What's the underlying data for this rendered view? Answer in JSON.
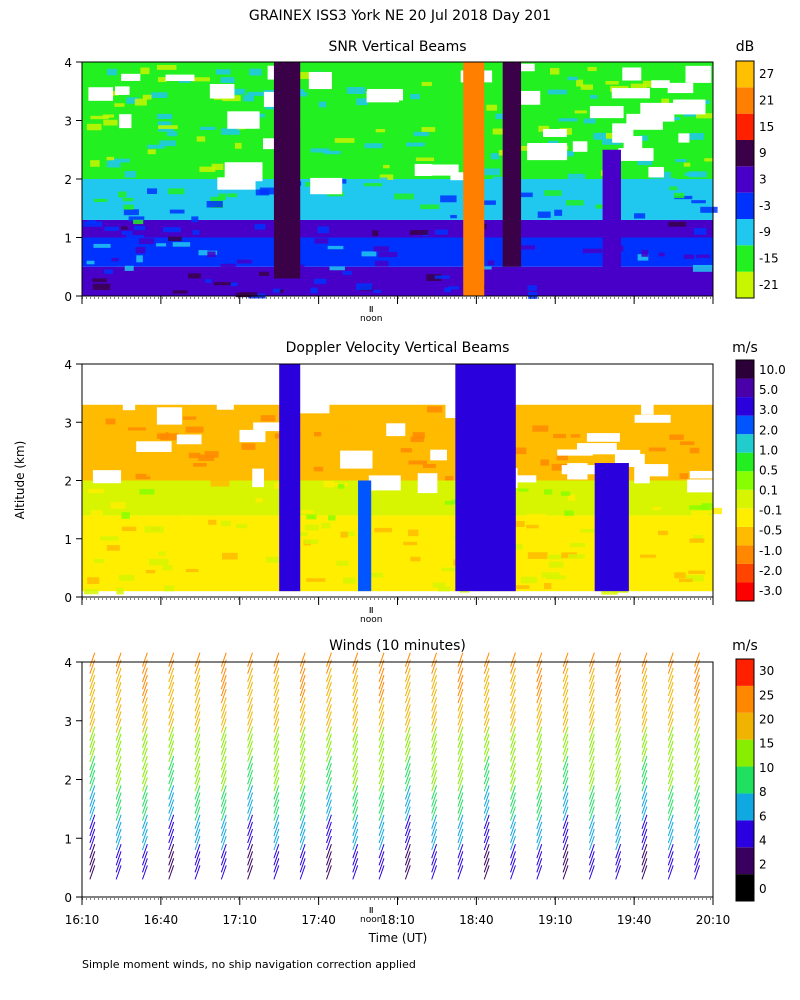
{
  "figure": {
    "title": "GRAINEX ISS3 York NE  20 Jul 2018 Day 201",
    "y_axis_label": "Altitude (km)",
    "x_axis_label": "Time (UT)",
    "noon_label": "noon",
    "footnote": "Simple moment winds, no ship navigation correction applied"
  },
  "colors": {
    "snr": [
      "#c8f500",
      "#22f020",
      "#20c8f0",
      "#0032ff",
      "#4800c8",
      "#3a0048",
      "#ff2000",
      "#ff8000",
      "#ffc000"
    ],
    "velocity": [
      "#ff0000",
      "#ff4400",
      "#ff8800",
      "#ffbb00",
      "#ffee00",
      "#d7f500",
      "#88ff00",
      "#22ee22",
      "#21cccc",
      "#0055ff",
      "#2a00dd",
      "#4a00a8",
      "#2b0038"
    ],
    "wind": [
      "#000000",
      "#3a0060",
      "#2a00e0",
      "#10a8e0",
      "#20e060",
      "#88ee00",
      "#f0b400",
      "#ff8800",
      "#ff2000"
    ]
  },
  "chart_data": [
    {
      "type": "heatmap",
      "title": "SNR Vertical Beams",
      "units": "dB",
      "ylabel": "Altitude (km)",
      "ylim": [
        0,
        4
      ],
      "xlim": [
        "16:10",
        "20:10"
      ],
      "y_ticks": [
        "0",
        "1",
        "2",
        "3",
        "4"
      ],
      "colorbar_labels": [
        "27",
        "21",
        "15",
        "9",
        "3",
        "-3",
        "-9",
        "-15",
        "-21"
      ],
      "bands": [
        {
          "alt_from": 0.0,
          "alt_to": 0.5,
          "snr_db": 3
        },
        {
          "alt_from": 0.5,
          "alt_to": 1.0,
          "snr_db": -3
        },
        {
          "alt_from": 1.0,
          "alt_to": 1.3,
          "snr_db": 3
        },
        {
          "alt_from": 1.3,
          "alt_to": 2.0,
          "snr_db": -9
        },
        {
          "alt_from": 2.0,
          "alt_to": 4.0,
          "snr_db": -15
        }
      ],
      "features": [
        {
          "time_from": "17:23",
          "time_to": "17:33",
          "alt_from": 0.3,
          "alt_to": 4.0,
          "snr_db": 9
        },
        {
          "time_from": "18:35",
          "time_to": "18:43",
          "alt_from": 0.0,
          "alt_to": 4.0,
          "snr_db": 21
        },
        {
          "time_from": "18:50",
          "time_to": "18:57",
          "alt_from": 0.5,
          "alt_to": 4.0,
          "snr_db": 9
        },
        {
          "time_from": "19:28",
          "time_to": "19:35",
          "alt_from": 0.0,
          "alt_to": 2.5,
          "snr_db": 3
        }
      ]
    },
    {
      "type": "heatmap",
      "title": "Doppler Velocity Vertical Beams",
      "units": "m/s",
      "ylabel": "Altitude (km)",
      "ylim": [
        0,
        4
      ],
      "xlim": [
        "16:10",
        "20:10"
      ],
      "y_ticks": [
        "0",
        "1",
        "2",
        "3",
        "4"
      ],
      "colorbar_labels": [
        "10.0",
        "5.0",
        "3.0",
        "2.0",
        "1.0",
        "0.5",
        "0.1",
        "-0.1",
        "-0.5",
        "-1.0",
        "-2.0",
        "-3.0"
      ],
      "bands": [
        {
          "alt_from": 0.1,
          "alt_to": 1.4,
          "velocity_ms": -0.5
        },
        {
          "alt_from": 1.4,
          "alt_to": 2.0,
          "velocity_ms": -0.1
        },
        {
          "alt_from": 2.0,
          "alt_to": 3.3,
          "velocity_ms": -1.0
        }
      ],
      "features": [
        {
          "time_from": "17:25",
          "time_to": "17:33",
          "alt_from": 0.1,
          "alt_to": 4.0,
          "velocity_ms": 3.0
        },
        {
          "time_from": "17:55",
          "time_to": "18:00",
          "alt_from": 0.1,
          "alt_to": 2.0,
          "velocity_ms": 2.0
        },
        {
          "time_from": "18:32",
          "time_to": "18:55",
          "alt_from": 0.1,
          "alt_to": 4.0,
          "velocity_ms": 3.0
        },
        {
          "time_from": "19:25",
          "time_to": "19:38",
          "alt_from": 0.1,
          "alt_to": 2.3,
          "velocity_ms": 3.0
        }
      ]
    },
    {
      "type": "scatter",
      "title": "Winds (10 minutes)",
      "units": "m/s",
      "ylabel": "Altitude (km)",
      "xlabel": "Time (UT)",
      "ylim": [
        0,
        4
      ],
      "xlim": [
        "16:10",
        "20:10"
      ],
      "x_ticks": [
        "16:10",
        "16:40",
        "17:10",
        "17:40",
        "18:10",
        "18:40",
        "19:10",
        "19:40",
        "20:10"
      ],
      "y_ticks": [
        "0",
        "1",
        "2",
        "3",
        "4"
      ],
      "colorbar_labels": [
        "30",
        "25",
        "20",
        "15",
        "10",
        "8",
        "6",
        "4",
        "2",
        "0"
      ],
      "profile_times": [
        "16:13",
        "16:23",
        "16:33",
        "16:43",
        "16:53",
        "17:03",
        "17:13",
        "17:23",
        "17:33",
        "17:43",
        "17:53",
        "18:03",
        "18:13",
        "18:23",
        "18:33",
        "18:43",
        "18:53",
        "19:03",
        "19:13",
        "19:23",
        "19:33",
        "19:43",
        "19:53",
        "20:03"
      ],
      "profiles": [
        {
          "alt_km": 0.3,
          "speed_ms": 3
        },
        {
          "alt_km": 0.8,
          "speed_ms": 5
        },
        {
          "alt_km": 1.3,
          "speed_ms": 7
        },
        {
          "alt_km": 1.8,
          "speed_ms": 9
        },
        {
          "alt_km": 2.3,
          "speed_ms": 12
        },
        {
          "alt_km": 2.8,
          "speed_ms": 15
        },
        {
          "alt_km": 3.3,
          "speed_ms": 18
        },
        {
          "alt_km": 3.8,
          "speed_ms": 22
        }
      ]
    }
  ]
}
